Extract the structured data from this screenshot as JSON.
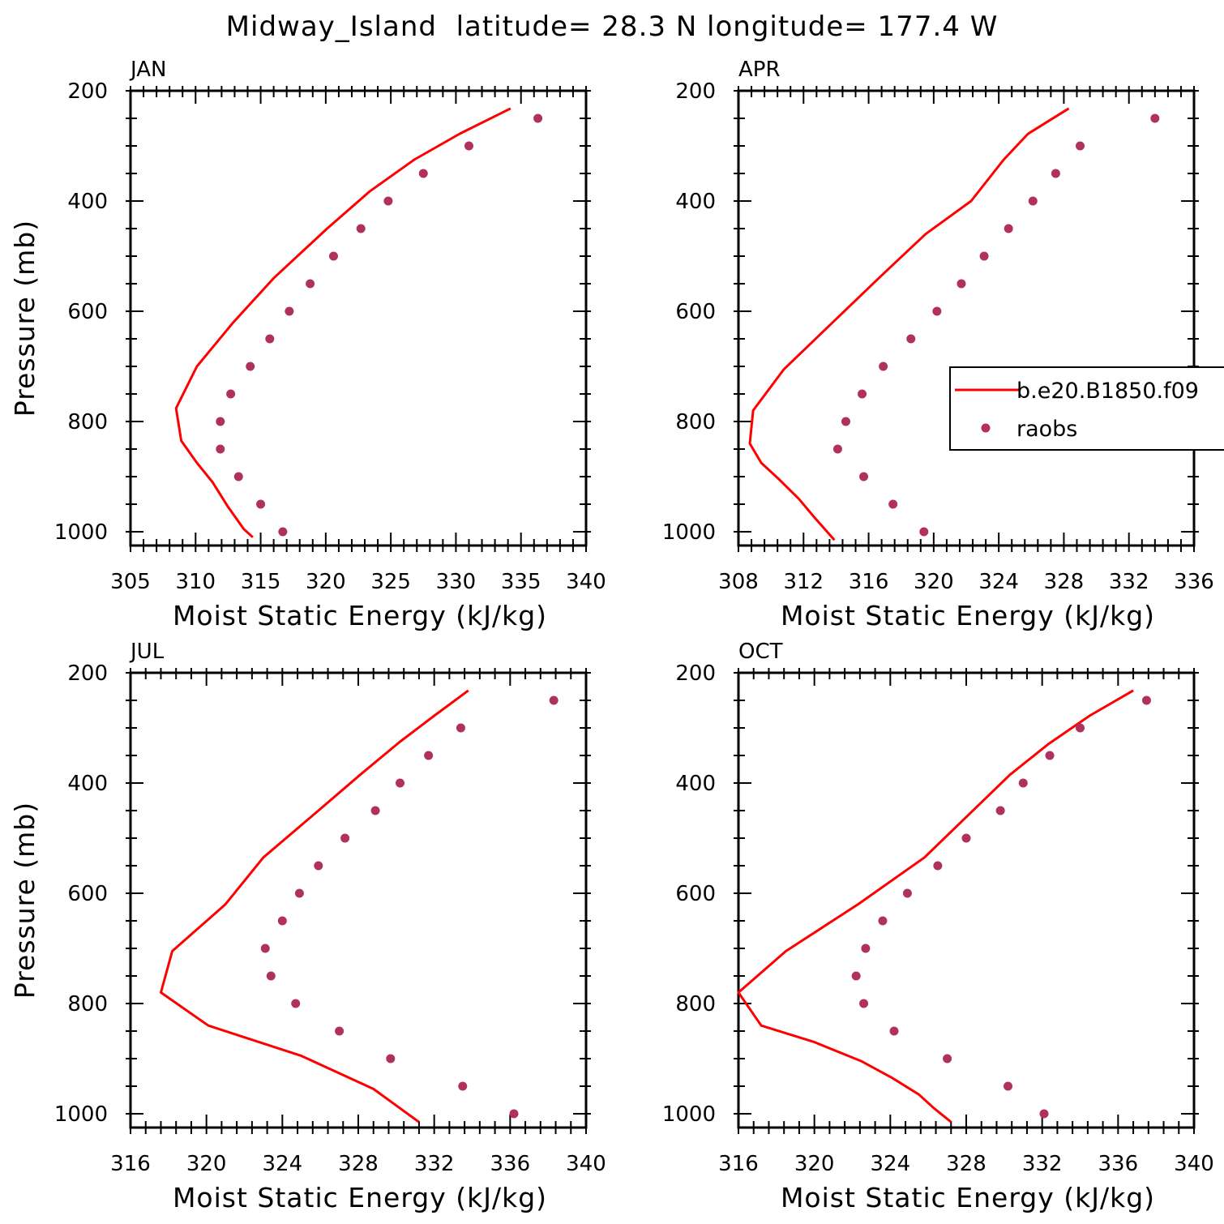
{
  "figure": {
    "title": "Midway_Island  latitude= 28.3 N longitude= 177.4 W",
    "colors": {
      "model": "#ff0000",
      "obs": "#b03060"
    },
    "legend": {
      "placement": "right, inside APR panel",
      "entries": [
        {
          "label": "b.e20.B1850.f09",
          "type": "line"
        },
        {
          "label": "raobs",
          "type": "marker"
        }
      ]
    }
  },
  "chart_data": [
    {
      "type": "line+scatter",
      "panel": "JAN",
      "xlabel": "Moist Static Energy (kJ/kg)",
      "ylabel": "Pressure (mb)",
      "xlim": [
        305,
        340
      ],
      "ylim": [
        1000,
        200
      ],
      "xticks": [
        "305",
        "310",
        "315",
        "320",
        "325",
        "330",
        "335",
        "340"
      ],
      "yticks": [
        "200",
        "400",
        "600",
        "800",
        "1000"
      ],
      "series": [
        {
          "kind": "line",
          "x": [
            334.2,
            330.3,
            326.8,
            323.4,
            320.1,
            316.0,
            312.9,
            310.1,
            308.5,
            308.9,
            310.1,
            311.3,
            312.5,
            313.7,
            314.4
          ],
          "y": [
            232,
            278,
            325,
            382,
            450,
            540,
            620,
            700,
            776,
            835,
            875,
            910,
            955,
            995,
            1010
          ]
        },
        {
          "kind": "scatter",
          "x": [
            336.3,
            331.0,
            327.5,
            324.8,
            322.7,
            320.6,
            318.8,
            317.2,
            315.7,
            314.2,
            312.7,
            311.9,
            311.9,
            313.3,
            315.0,
            316.7
          ],
          "y": [
            250,
            300,
            350,
            400,
            450,
            500,
            550,
            600,
            650,
            700,
            750,
            800,
            850,
            900,
            950,
            1000
          ]
        }
      ]
    },
    {
      "type": "line+scatter",
      "panel": "APR",
      "xlabel": "Moist Static Energy (kJ/kg)",
      "ylabel": "",
      "xlim": [
        308,
        336
      ],
      "ylim": [
        1000,
        200
      ],
      "xticks": [
        "308",
        "312",
        "316",
        "320",
        "324",
        "328",
        "332",
        "336"
      ],
      "yticks": [
        "200",
        "400",
        "600",
        "800",
        "1000"
      ],
      "series": [
        {
          "kind": "line",
          "x": [
            328.3,
            325.8,
            324.3,
            322.3,
            319.5,
            316.8,
            313.8,
            310.8,
            308.9,
            308.7,
            309.4,
            310.5,
            311.7,
            312.7,
            313.3,
            313.9
          ],
          "y": [
            232,
            278,
            325,
            400,
            460,
            535,
            620,
            705,
            780,
            840,
            875,
            905,
            940,
            975,
            995,
            1015
          ]
        },
        {
          "kind": "scatter",
          "x": [
            333.6,
            329.0,
            327.5,
            326.1,
            324.6,
            323.1,
            321.7,
            320.2,
            318.6,
            316.9,
            315.6,
            314.6,
            314.1,
            315.7,
            317.5,
            319.4
          ],
          "y": [
            250,
            300,
            350,
            400,
            450,
            500,
            550,
            600,
            650,
            700,
            750,
            800,
            850,
            900,
            950,
            1000
          ]
        }
      ]
    },
    {
      "type": "line+scatter",
      "panel": "JUL",
      "xlabel": "Moist Static Energy (kJ/kg)",
      "ylabel": "Pressure (mb)",
      "xlim": [
        316,
        340
      ],
      "ylim": [
        1000,
        200
      ],
      "xticks": [
        "316",
        "320",
        "324",
        "328",
        "332",
        "336",
        "340"
      ],
      "yticks": [
        "200",
        "400",
        "600",
        "800",
        "1000"
      ],
      "series": [
        {
          "kind": "line",
          "x": [
            333.8,
            332.0,
            330.2,
            328.1,
            325.9,
            323.0,
            321.0,
            318.2,
            317.6,
            320.1,
            325.0,
            328.8,
            330.0,
            331.2
          ],
          "y": [
            232,
            278,
            325,
            385,
            450,
            535,
            620,
            705,
            780,
            840,
            895,
            955,
            985,
            1015
          ]
        },
        {
          "kind": "scatter",
          "x": [
            338.3,
            333.4,
            331.7,
            330.2,
            328.9,
            327.3,
            325.9,
            324.9,
            324.0,
            323.1,
            323.4,
            324.7,
            327.0,
            329.7,
            333.5,
            336.2
          ],
          "y": [
            250,
            300,
            350,
            400,
            450,
            500,
            550,
            600,
            650,
            700,
            750,
            800,
            850,
            900,
            950,
            1000
          ]
        }
      ]
    },
    {
      "type": "line+scatter",
      "panel": "OCT",
      "xlabel": "Moist Static Energy (kJ/kg)",
      "ylabel": "",
      "xlim": [
        316,
        340
      ],
      "ylim": [
        1000,
        200
      ],
      "xticks": [
        "316",
        "320",
        "324",
        "328",
        "332",
        "336",
        "340"
      ],
      "yticks": [
        "200",
        "400",
        "600",
        "800",
        "1000"
      ],
      "series": [
        {
          "kind": "line",
          "x": [
            336.8,
            334.5,
            332.3,
            330.3,
            328.2,
            325.8,
            322.3,
            318.5,
            316.0,
            317.2,
            320.0,
            322.5,
            324.1,
            325.5,
            326.3,
            327.2
          ],
          "y": [
            232,
            278,
            330,
            385,
            455,
            535,
            620,
            705,
            780,
            840,
            870,
            905,
            935,
            965,
            990,
            1015
          ]
        },
        {
          "kind": "scatter",
          "x": [
            337.5,
            334.0,
            332.4,
            331.0,
            329.8,
            328.0,
            326.5,
            324.9,
            323.6,
            322.7,
            322.2,
            322.6,
            324.2,
            327.0,
            330.2,
            332.1
          ],
          "y": [
            250,
            300,
            350,
            400,
            450,
            500,
            550,
            600,
            650,
            700,
            750,
            800,
            850,
            900,
            950,
            1000
          ]
        }
      ]
    }
  ]
}
